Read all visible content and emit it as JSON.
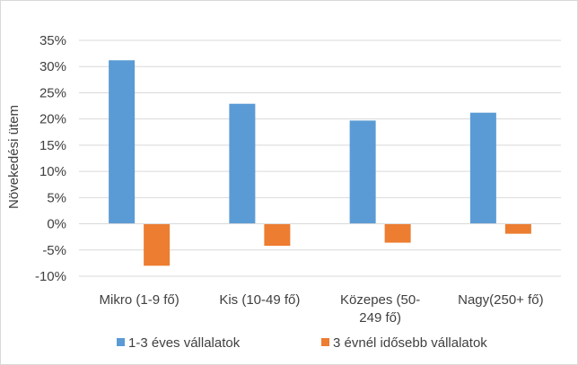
{
  "chart_data": {
    "type": "bar",
    "title": "",
    "xlabel": "",
    "ylabel": "Növekedési ütem",
    "ylim": [
      -10,
      35
    ],
    "yticks": [
      35,
      30,
      25,
      20,
      15,
      10,
      5,
      0,
      -5,
      -10
    ],
    "ytick_labels": [
      "35%",
      "30%",
      "25%",
      "20%",
      "15%",
      "10%",
      "5%",
      "0%",
      "-5%",
      "-10%"
    ],
    "grid": true,
    "legend_position": "bottom",
    "categories": [
      [
        "Mikro (1-9 fő)"
      ],
      [
        "Kis (10-49 fő)"
      ],
      [
        "Közepes  (50-",
        "249 fő)"
      ],
      [
        "Nagy(250+ fő)"
      ]
    ],
    "series": [
      {
        "name": "1-3 éves vállalatok",
        "color": "#5b9bd5",
        "values": [
          31.2,
          22.9,
          19.7,
          21.2
        ]
      },
      {
        "name": "3 évnél idősebb vállalatok",
        "color": "#ed7d31",
        "values": [
          -8.0,
          -4.2,
          -3.6,
          -1.9
        ]
      }
    ]
  }
}
